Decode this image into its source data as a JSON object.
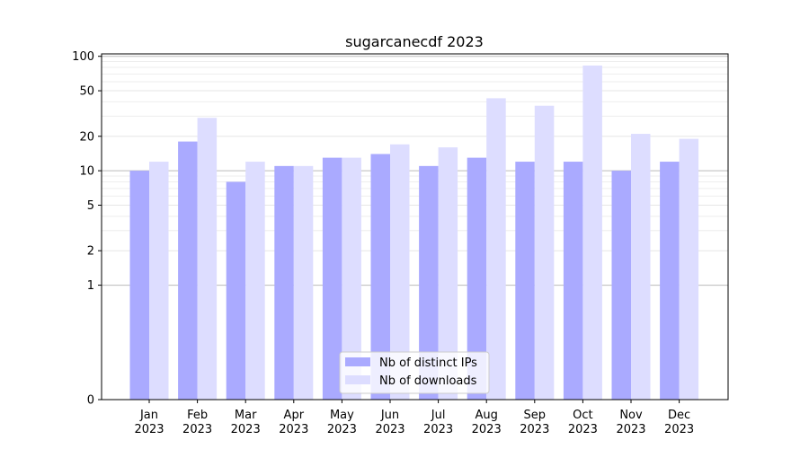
{
  "chart_data": {
    "type": "bar",
    "title": "sugarcanecdf 2023",
    "xlabel": "",
    "ylabel": "",
    "yscale": "symlog",
    "ylim": [
      0,
      105
    ],
    "y_ticks": [
      0,
      1,
      2,
      5,
      10,
      20,
      50,
      100
    ],
    "grid": "y",
    "legend_position": "lower-center",
    "categories": [
      "Jan\n2023",
      "Feb\n2023",
      "Mar\n2023",
      "Apr\n2023",
      "May\n2023",
      "Jun\n2023",
      "Jul\n2023",
      "Aug\n2023",
      "Sep\n2023",
      "Oct\n2023",
      "Nov\n2023",
      "Dec\n2023"
    ],
    "category_lines": [
      [
        "Jan",
        "2023"
      ],
      [
        "Feb",
        "2023"
      ],
      [
        "Mar",
        "2023"
      ],
      [
        "Apr",
        "2023"
      ],
      [
        "May",
        "2023"
      ],
      [
        "Jun",
        "2023"
      ],
      [
        "Jul",
        "2023"
      ],
      [
        "Aug",
        "2023"
      ],
      [
        "Sep",
        "2023"
      ],
      [
        "Oct",
        "2023"
      ],
      [
        "Nov",
        "2023"
      ],
      [
        "Dec",
        "2023"
      ]
    ],
    "series": [
      {
        "name": "Nb of distinct IPs",
        "color": "#aaaaff",
        "values": [
          10,
          18,
          8,
          11,
          13,
          14,
          11,
          13,
          12,
          12,
          10,
          12
        ]
      },
      {
        "name": "Nb of downloads",
        "color": "#ddddff",
        "values": [
          12,
          29,
          12,
          11,
          13,
          17,
          16,
          43,
          37,
          83,
          21,
          19
        ]
      }
    ]
  }
}
